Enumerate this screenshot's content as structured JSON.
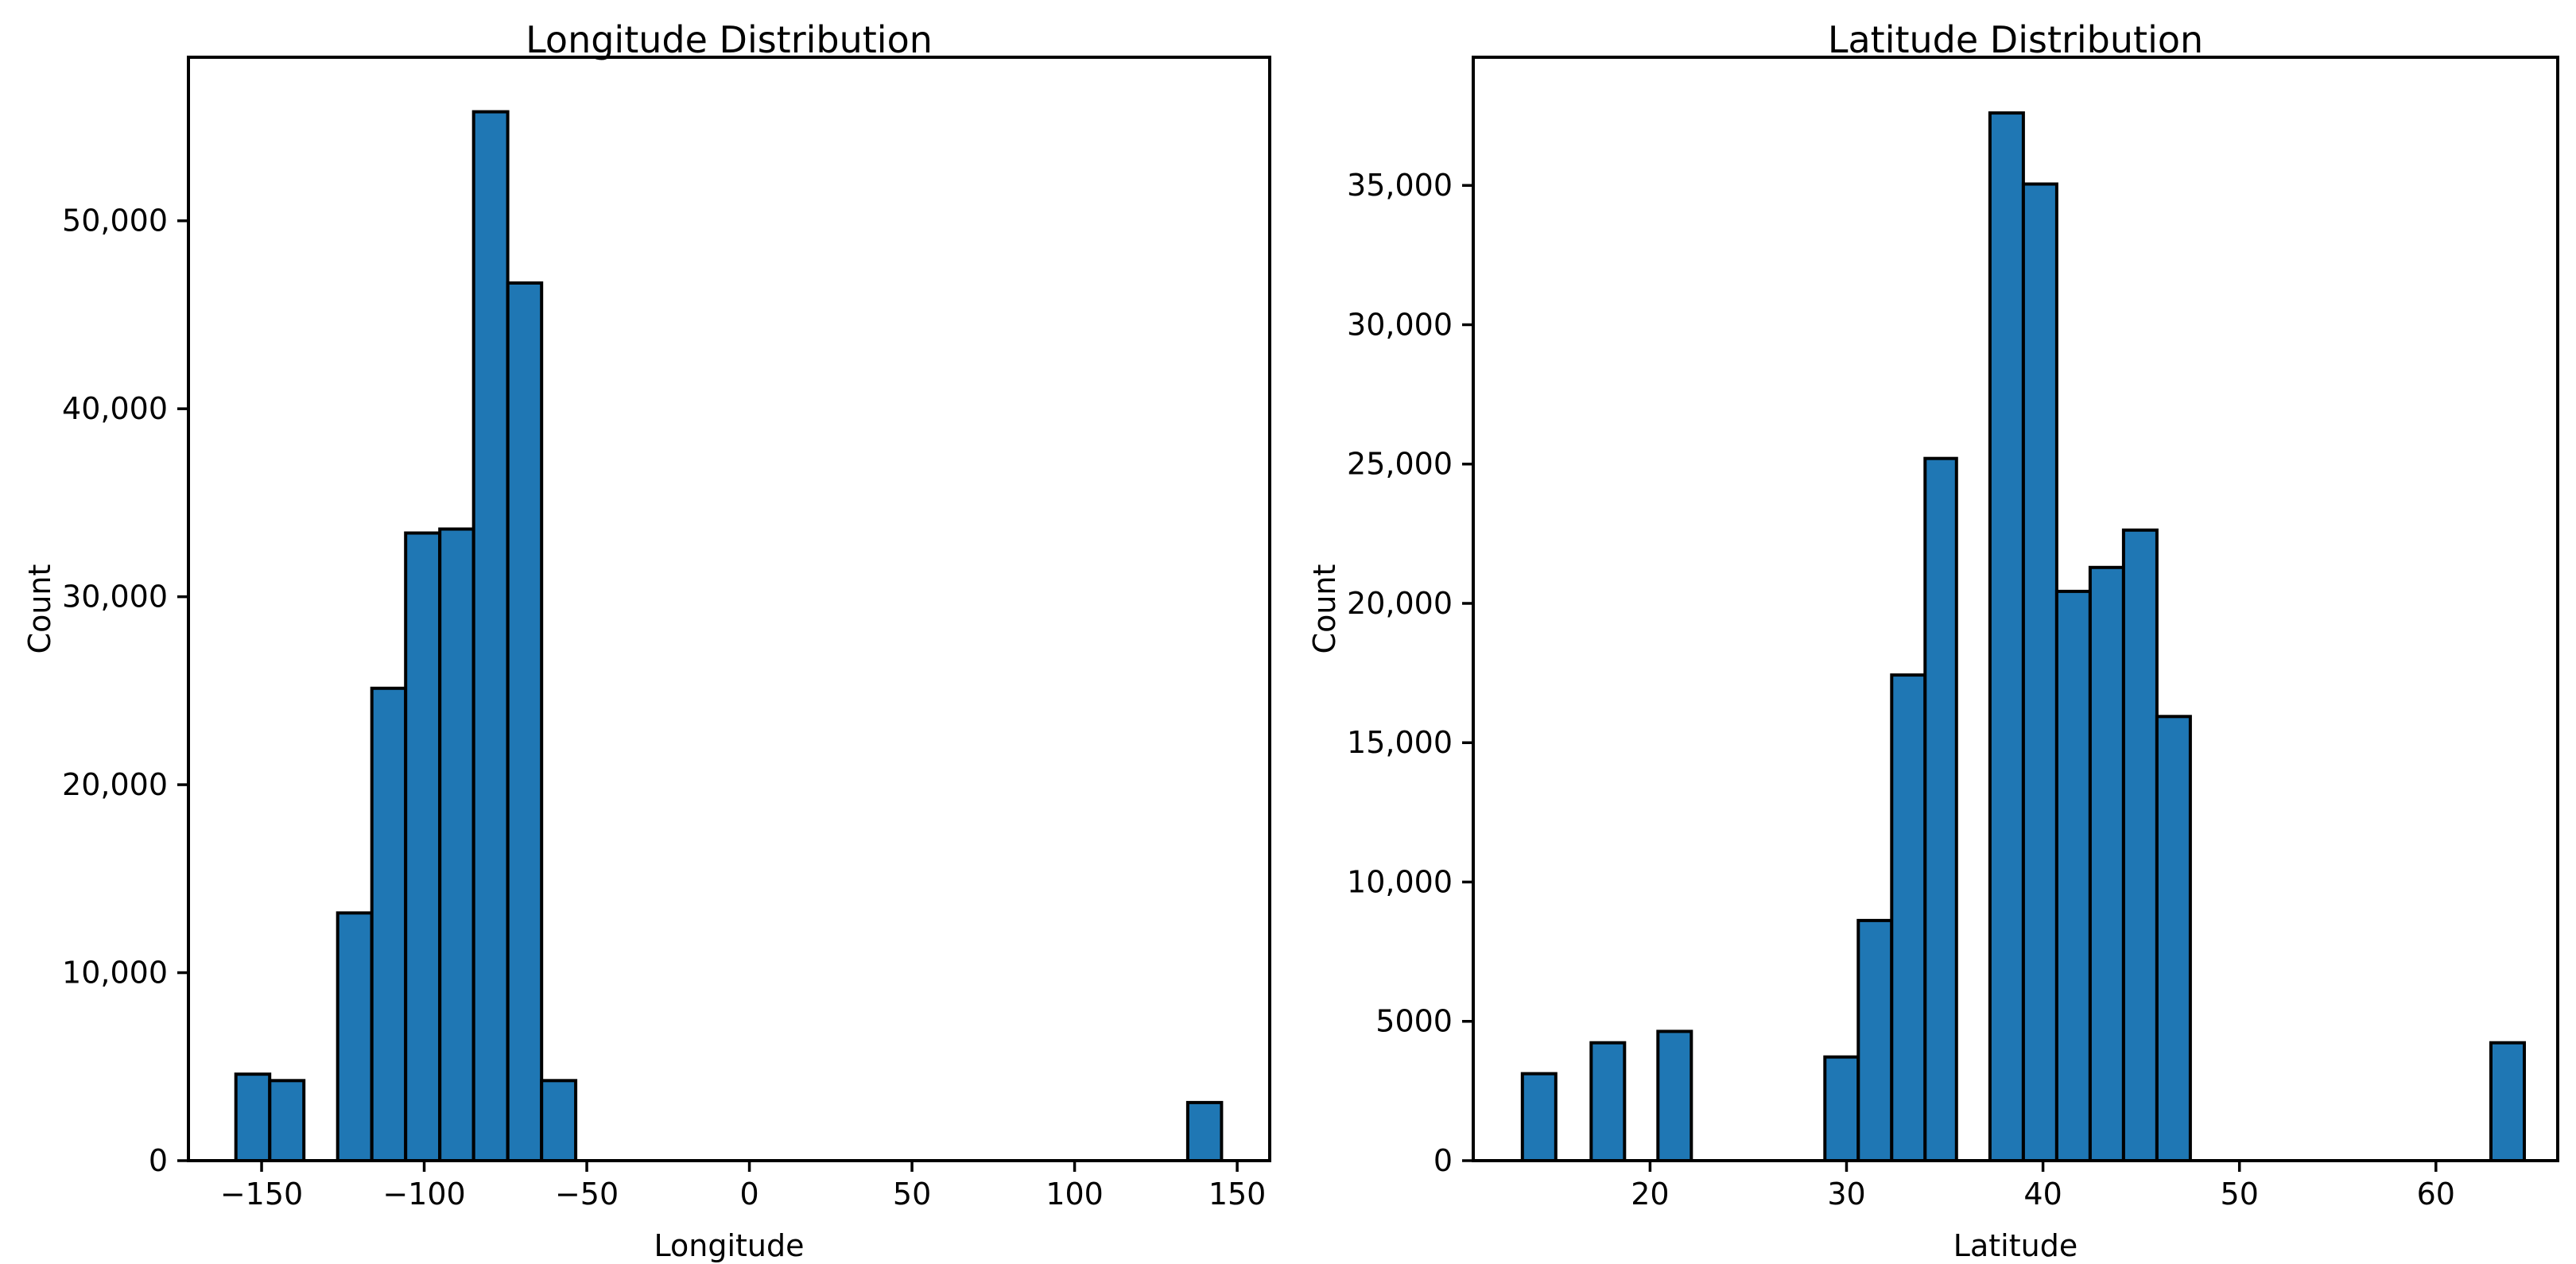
{
  "figure": {
    "background": "#ffffff",
    "bar_fill": "#1f77b4",
    "bar_edge": "#000000",
    "text_color": "#000000"
  },
  "chart_data": [
    {
      "type": "bar",
      "subtype": "histogram",
      "title": "Longitude Distribution",
      "xlabel": "Longitude",
      "ylabel": "Count",
      "xlim": [
        -172.5,
        160.0
      ],
      "ylim": [
        0,
        58700
      ],
      "grid": false,
      "legend_position": "none",
      "bin_width": 10.45,
      "xticks": [
        {
          "v": -150,
          "label": "−150"
        },
        {
          "v": -100,
          "label": "−100"
        },
        {
          "v": -50,
          "label": "−50"
        },
        {
          "v": 0,
          "label": "0"
        },
        {
          "v": 50,
          "label": "50"
        },
        {
          "v": 100,
          "label": "100"
        },
        {
          "v": 150,
          "label": "150"
        }
      ],
      "yticks": [
        {
          "v": 0,
          "label": "0"
        },
        {
          "v": 10000,
          "label": "10,000"
        },
        {
          "v": 20000,
          "label": "20,000"
        },
        {
          "v": 30000,
          "label": "30,000"
        },
        {
          "v": 40000,
          "label": "40,000"
        },
        {
          "v": 50000,
          "label": "50,000"
        }
      ],
      "bins": [
        [
          -157.9,
          -147.5,
          4600
        ],
        [
          -147.5,
          -137.0,
          4260
        ],
        [
          -126.6,
          -116.1,
          13180
        ],
        [
          -116.1,
          -105.7,
          25130
        ],
        [
          -105.7,
          -95.2,
          33390
        ],
        [
          -95.2,
          -84.8,
          33600
        ],
        [
          -84.8,
          -74.3,
          55800
        ],
        [
          -74.3,
          -63.9,
          46690
        ],
        [
          -63.9,
          -53.4,
          4260
        ],
        [
          134.8,
          145.2,
          3090
        ]
      ]
    },
    {
      "type": "bar",
      "subtype": "histogram",
      "title": "Latitude Distribution",
      "xlabel": "Latitude",
      "ylabel": "Count",
      "xlim": [
        11.0,
        66.2
      ],
      "ylim": [
        0,
        39600
      ],
      "grid": false,
      "legend_position": "none",
      "bin_width": 1.7,
      "xticks": [
        {
          "v": 20,
          "label": "20"
        },
        {
          "v": 30,
          "label": "30"
        },
        {
          "v": 40,
          "label": "40"
        },
        {
          "v": 50,
          "label": "50"
        },
        {
          "v": 60,
          "label": "60"
        }
      ],
      "yticks": [
        {
          "v": 0,
          "label": "0"
        },
        {
          "v": 5000,
          "label": "5000"
        },
        {
          "v": 10000,
          "label": "10,000"
        },
        {
          "v": 15000,
          "label": "15,000"
        },
        {
          "v": 20000,
          "label": "20,000"
        },
        {
          "v": 25000,
          "label": "25,000"
        },
        {
          "v": 30000,
          "label": "30,000"
        },
        {
          "v": 35000,
          "label": "35,000"
        }
      ],
      "bins": [
        [
          13.5,
          15.2,
          3120
        ],
        [
          17.0,
          18.7,
          4230
        ],
        [
          20.4,
          22.1,
          4640
        ],
        [
          28.9,
          30.6,
          3720
        ],
        [
          30.6,
          32.3,
          8620
        ],
        [
          32.3,
          34.0,
          17430
        ],
        [
          34.0,
          35.6,
          25200
        ],
        [
          37.3,
          39.0,
          37600
        ],
        [
          39.0,
          40.7,
          35050
        ],
        [
          40.7,
          42.4,
          20430
        ],
        [
          42.4,
          44.1,
          21290
        ],
        [
          44.1,
          45.8,
          22630
        ],
        [
          45.8,
          47.5,
          15940
        ],
        [
          62.8,
          64.5,
          4230
        ]
      ]
    }
  ]
}
